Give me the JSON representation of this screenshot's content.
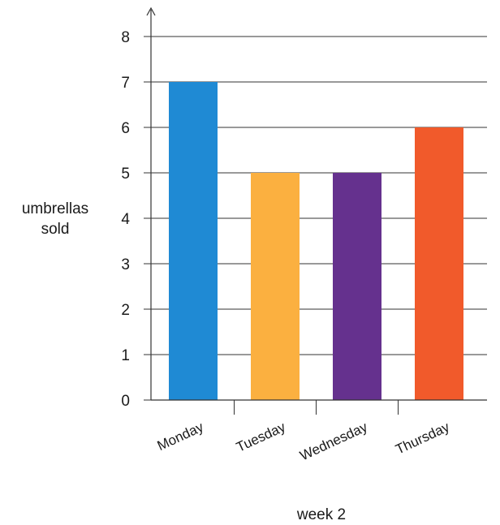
{
  "chart_data": {
    "type": "bar",
    "categories": [
      "Monday",
      "Tuesday",
      "Wednesday",
      "Thursday"
    ],
    "values": [
      7,
      5,
      5,
      6
    ],
    "colors": [
      "#1f8ad4",
      "#fbb040",
      "#65318e",
      "#f15a2b"
    ],
    "xlabel": "week 2",
    "ylabel": [
      "umbrellas",
      "sold"
    ],
    "ylim": [
      0,
      8
    ],
    "yticks": [
      0,
      1,
      2,
      3,
      4,
      5,
      6,
      7,
      8
    ],
    "grid": true
  }
}
